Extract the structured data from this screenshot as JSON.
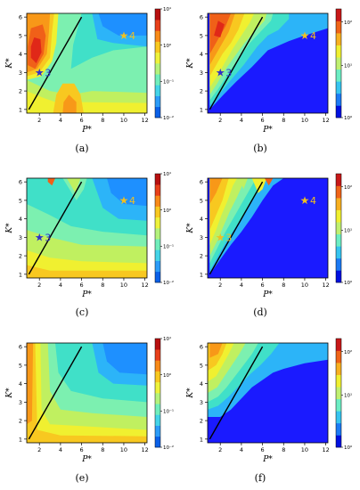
{
  "chart_data": [
    {
      "panel": "(a)",
      "type": "heatmap",
      "ylabel": "K*",
      "xlabel": "P*",
      "x_ticks": [
        2,
        4,
        6,
        8,
        10,
        12
      ],
      "y_ticks": [
        1,
        2,
        3,
        4,
        5,
        6
      ],
      "colorbar_ticks": [
        "10¹",
        "10⁰",
        "10⁻¹",
        "10⁻²"
      ],
      "colorbar_scale": "log",
      "colorbar_range": [
        "10⁻²",
        "10¹"
      ],
      "colormap": "jet",
      "markers": [
        {
          "label": "3",
          "P": 2,
          "K": 3,
          "color": "#3030c8"
        },
        {
          "label": "4",
          "P": 10,
          "K": 5,
          "color": "#f0c020"
        }
      ],
      "line": {
        "from": [
          1,
          1
        ],
        "to": [
          6,
          6
        ]
      }
    },
    {
      "panel": "(b)",
      "type": "heatmap",
      "ylabel": "K*",
      "xlabel": "P*",
      "x_ticks": [
        2,
        4,
        6,
        8,
        10,
        12
      ],
      "y_ticks": [
        1,
        2,
        3,
        4,
        5,
        6
      ],
      "colorbar_ticks": [
        "10²",
        "10¹",
        "10⁰"
      ],
      "colorbar_scale": "log",
      "colorbar_range": [
        "10⁰",
        "10²"
      ],
      "colormap": "jet",
      "markers": [
        {
          "label": "3",
          "P": 2,
          "K": 3,
          "color": "#3030c8"
        },
        {
          "label": "4",
          "P": 10,
          "K": 5,
          "color": "#f0c020"
        }
      ],
      "line": {
        "from": [
          1,
          1
        ],
        "to": [
          6,
          6
        ]
      }
    },
    {
      "panel": "(c)",
      "type": "heatmap",
      "ylabel": "K*",
      "xlabel": "P*",
      "x_ticks": [
        2,
        4,
        6,
        8,
        10,
        12
      ],
      "y_ticks": [
        1,
        2,
        3,
        4,
        5,
        6
      ],
      "colorbar_ticks": [
        "10¹",
        "10⁰",
        "10⁻¹",
        "10⁻²"
      ],
      "colorbar_scale": "log",
      "colorbar_range": [
        "10⁻²",
        "10¹"
      ],
      "colormap": "jet",
      "markers": [
        {
          "label": "3",
          "P": 2,
          "K": 3,
          "color": "#3030c8"
        },
        {
          "label": "4",
          "P": 10,
          "K": 5,
          "color": "#f0c020"
        }
      ],
      "line": {
        "from": [
          1,
          1
        ],
        "to": [
          6,
          6
        ]
      }
    },
    {
      "panel": "(d)",
      "type": "heatmap",
      "ylabel": "K*",
      "xlabel": "P*",
      "x_ticks": [
        2,
        4,
        6,
        8,
        10,
        12
      ],
      "y_ticks": [
        1,
        2,
        3,
        4,
        5,
        6
      ],
      "colorbar_ticks": [
        "10²",
        "10¹",
        "10⁰"
      ],
      "colorbar_scale": "log",
      "colorbar_range": [
        "10⁰",
        "10²"
      ],
      "colormap": "jet",
      "markers": [
        {
          "label": "3",
          "P": 2,
          "K": 3,
          "color": "#f0c020"
        },
        {
          "label": "4",
          "P": 10,
          "K": 5,
          "color": "#f0c020"
        }
      ],
      "line": {
        "from": [
          1,
          1
        ],
        "to": [
          6,
          6
        ]
      }
    },
    {
      "panel": "(e)",
      "type": "heatmap",
      "ylabel": "K*",
      "xlabel": "P*",
      "x_ticks": [
        2,
        4,
        6,
        8,
        10,
        12
      ],
      "y_ticks": [
        1,
        2,
        3,
        4,
        5,
        6
      ],
      "colorbar_ticks": [
        "10¹",
        "10⁰",
        "10⁻¹",
        "10⁻²"
      ],
      "colorbar_scale": "log",
      "colorbar_range": [
        "10⁻²",
        "10¹"
      ],
      "colormap": "jet",
      "markers": [],
      "line": {
        "from": [
          1,
          1
        ],
        "to": [
          6,
          6
        ]
      }
    },
    {
      "panel": "(f)",
      "type": "heatmap",
      "ylabel": "K*",
      "xlabel": "P*",
      "x_ticks": [
        2,
        4,
        6,
        8,
        10,
        12
      ],
      "y_ticks": [
        1,
        2,
        3,
        4,
        5,
        6
      ],
      "colorbar_ticks": [
        "10²",
        "10¹",
        "10⁰"
      ],
      "colorbar_scale": "log",
      "colorbar_range": [
        "10⁰",
        "10²"
      ],
      "colormap": "jet",
      "markers": [],
      "line": {
        "from": [
          1,
          1
        ],
        "to": [
          6,
          6
        ]
      }
    }
  ]
}
